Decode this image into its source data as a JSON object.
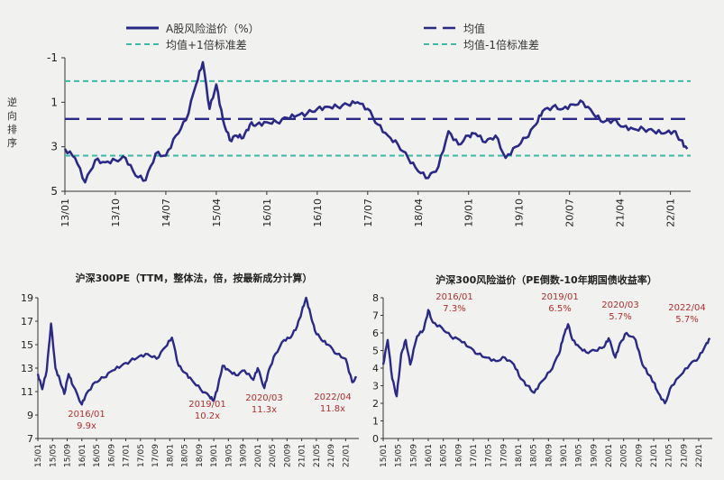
{
  "colors": {
    "line": "#2a2a86",
    "mean": "#2a2a86",
    "band": "#3fb8a6",
    "annot": "#b03030",
    "axis": "#333333"
  },
  "chart_data": [
    {
      "type": "line",
      "title": "",
      "ylabel": "逆向排序",
      "yaxis_inverted": true,
      "ylim": [
        -1,
        5
      ],
      "yticks": [
        "-1",
        "1",
        "3",
        "5"
      ],
      "legend_placement": "top",
      "legend": {
        "line": "A股风险溢价（%）",
        "mean": "均值",
        "plus": "均值+1倍标准差",
        "minus": "均值-1倍标准差"
      },
      "mean": 1.75,
      "plus_1sd": 0.05,
      "minus_1sd": 3.4,
      "xticks": [
        "13/01",
        "13/10",
        "14/07",
        "15/04",
        "16/01",
        "16/10",
        "17/07",
        "18/04",
        "19/01",
        "19/10",
        "20/07",
        "21/04",
        "22/01"
      ],
      "x": [
        2013.0,
        2013.15,
        2013.3,
        2013.45,
        2013.6,
        2013.75,
        2013.9,
        2014.05,
        2014.2,
        2014.35,
        2014.5,
        2014.65,
        2014.8,
        2014.95,
        2015.05,
        2015.15,
        2015.25,
        2015.35,
        2015.45,
        2015.55,
        2015.65,
        2015.75,
        2015.85,
        2016.0,
        2016.15,
        2016.3,
        2016.45,
        2016.6,
        2016.75,
        2016.9,
        2017.05,
        2017.2,
        2017.35,
        2017.5,
        2017.65,
        2017.8,
        2017.95,
        2018.1,
        2018.25,
        2018.4,
        2018.55,
        2018.7,
        2018.85,
        2019.0,
        2019.1,
        2019.25,
        2019.4,
        2019.55,
        2019.7,
        2019.85,
        2020.0,
        2020.1,
        2020.25,
        2020.4,
        2020.55,
        2020.7,
        2020.85,
        2021.0,
        2021.15,
        2021.3,
        2021.45,
        2021.6,
        2021.75,
        2021.9,
        2022.05,
        2022.15,
        2022.25
      ],
      "y": [
        3.1,
        3.5,
        4.6,
        3.6,
        3.7,
        3.6,
        3.5,
        4.3,
        4.5,
        3.3,
        3.4,
        2.5,
        1.8,
        0.2,
        -0.8,
        1.3,
        0.2,
        1.8,
        2.7,
        2.5,
        2.6,
        2.0,
        2.0,
        1.9,
        1.9,
        1.7,
        1.6,
        1.5,
        1.3,
        1.2,
        1.2,
        1.1,
        1.0,
        1.3,
        2.0,
        2.5,
        2.9,
        3.5,
        4.1,
        4.4,
        3.9,
        2.3,
        2.9,
        2.5,
        2.4,
        2.8,
        2.5,
        3.5,
        3.0,
        2.6,
        2.0,
        1.4,
        1.2,
        1.3,
        1.1,
        1.0,
        1.5,
        1.9,
        1.8,
        2.1,
        2.2,
        2.2,
        2.3,
        2.4,
        2.3,
        2.7,
        3.1
      ]
    },
    {
      "type": "line",
      "title": "沪深300PE（TTM，整体法，倍，按最新成分计算）",
      "ylim": [
        7,
        19
      ],
      "yticks": [
        "7",
        "9",
        "11",
        "13",
        "15",
        "17",
        "19"
      ],
      "xticks": [
        "15/01",
        "15/05",
        "15/09",
        "16/01",
        "16/05",
        "16/09",
        "17/01",
        "17/05",
        "17/09",
        "18/01",
        "18/05",
        "18/09",
        "19/01",
        "19/05",
        "19/09",
        "20/01",
        "20/05",
        "20/09",
        "21/01",
        "21/05",
        "21/09",
        "22/01"
      ],
      "x": [
        2015.0,
        2015.1,
        2015.2,
        2015.3,
        2015.4,
        2015.5,
        2015.6,
        2015.7,
        2015.8,
        2016.0,
        2016.1,
        2016.3,
        2016.5,
        2016.7,
        2016.9,
        2017.1,
        2017.3,
        2017.5,
        2017.7,
        2017.9,
        2018.05,
        2018.2,
        2018.35,
        2018.5,
        2018.7,
        2018.9,
        2019.0,
        2019.1,
        2019.2,
        2019.35,
        2019.5,
        2019.7,
        2019.9,
        2020.0,
        2020.15,
        2020.25,
        2020.4,
        2020.6,
        2020.75,
        2020.9,
        2021.0,
        2021.1,
        2021.2,
        2021.3,
        2021.45,
        2021.6,
        2021.8,
        2022.0,
        2022.15,
        2022.25
      ],
      "y": [
        12.5,
        11.2,
        12.8,
        16.8,
        13.0,
        12.0,
        10.8,
        12.5,
        11.5,
        9.9,
        10.8,
        11.8,
        12.2,
        12.8,
        13.2,
        13.6,
        14.0,
        14.2,
        13.8,
        14.8,
        15.6,
        13.2,
        12.6,
        12.0,
        11.2,
        10.6,
        10.2,
        11.5,
        13.2,
        12.8,
        12.4,
        12.8,
        12.0,
        13.0,
        11.3,
        12.8,
        14.2,
        15.4,
        15.6,
        16.6,
        17.8,
        19.0,
        17.6,
        16.2,
        15.4,
        15.0,
        14.2,
        13.8,
        11.8,
        12.2
      ],
      "annotations": [
        {
          "date": "2016/01",
          "value": "9.9x"
        },
        {
          "date": "2019/01",
          "value": "10.2x"
        },
        {
          "date": "2020/03",
          "value": "11.3x"
        },
        {
          "date": "2022/04",
          "value": "11.8x"
        }
      ]
    },
    {
      "type": "line",
      "title": "沪深300风险溢价（PE倒数-10年期国债收益率）",
      "ylim": [
        0,
        8
      ],
      "yticks": [
        "0",
        "1",
        "2",
        "3",
        "4",
        "5",
        "6",
        "7",
        "8"
      ],
      "xticks": [
        "15/01",
        "15/05",
        "15/09",
        "16/01",
        "16/05",
        "16/09",
        "17/01",
        "17/05",
        "17/09",
        "18/01",
        "18/05",
        "18/09",
        "19/01",
        "19/05",
        "19/09",
        "20/01",
        "20/05",
        "20/09",
        "21/01",
        "21/05",
        "21/09",
        "22/01"
      ],
      "x": [
        2015.0,
        2015.1,
        2015.2,
        2015.3,
        2015.4,
        2015.5,
        2015.6,
        2015.75,
        2015.9,
        2016.0,
        2016.1,
        2016.3,
        2016.5,
        2016.7,
        2016.9,
        2017.1,
        2017.3,
        2017.5,
        2017.7,
        2017.9,
        2018.05,
        2018.2,
        2018.35,
        2018.5,
        2018.7,
        2018.9,
        2019.0,
        2019.1,
        2019.2,
        2019.35,
        2019.5,
        2019.7,
        2019.9,
        2020.0,
        2020.15,
        2020.25,
        2020.4,
        2020.6,
        2020.75,
        2020.9,
        2021.0,
        2021.1,
        2021.25,
        2021.4,
        2021.6,
        2021.8,
        2022.0,
        2022.15,
        2022.25
      ],
      "y": [
        4.2,
        5.6,
        3.4,
        2.4,
        4.8,
        5.6,
        4.2,
        5.8,
        6.2,
        7.3,
        6.6,
        6.3,
        5.8,
        5.6,
        5.2,
        4.8,
        4.6,
        4.4,
        4.6,
        4.2,
        3.4,
        3.0,
        2.6,
        3.2,
        3.8,
        4.8,
        5.8,
        6.5,
        5.6,
        5.2,
        4.9,
        5.0,
        5.2,
        5.7,
        4.6,
        5.4,
        6.0,
        5.6,
        4.2,
        3.6,
        3.2,
        2.6,
        2.0,
        3.0,
        3.6,
        4.2,
        4.6,
        5.3,
        5.7
      ],
      "annotations": [
        {
          "date": "2016/01",
          "value": "7.3%"
        },
        {
          "date": "2019/01",
          "value": "6.5%"
        },
        {
          "date": "2020/03",
          "value": "5.7%"
        },
        {
          "date": "2022/04",
          "value": "5.7%"
        }
      ]
    }
  ]
}
